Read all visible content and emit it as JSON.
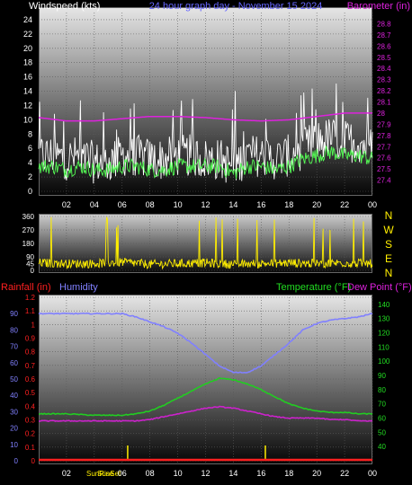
{
  "header": {
    "left_title": "Windspeed (kts)",
    "center_title": "24 hour graph day - November 15 2024",
    "right_title": "Barometer (in)"
  },
  "compass": [
    "N",
    "W",
    "S",
    "E",
    "N"
  ],
  "bottom_titles": {
    "rainfall": "Rainfall (in)",
    "humidity": "Humidity",
    "temperature": "Temperature (°F)",
    "dewpoint": "Dew Point (°F)"
  },
  "sun_labels": [
    "SunRise",
    "SunSet"
  ],
  "colors": {
    "windspeed": "#ffffff",
    "wind_avg": "#55ff55",
    "barometer": "#dd22dd",
    "direction": "#ffee00",
    "humidity": "#8080ff",
    "temperature": "#22cc22",
    "dewpoint": "#cc22cc",
    "rain": "#ff2020",
    "sun_marker": "#ffee00"
  },
  "chart_data": [
    {
      "type": "line",
      "panel": "wind",
      "x_tick_labels": [
        "02",
        "04",
        "06",
        "08",
        "10",
        "12",
        "14",
        "16",
        "18",
        "20",
        "22",
        "00"
      ],
      "xlim_hours": [
        0,
        24
      ],
      "ylabel": "Windspeed (kts)",
      "ylim": [
        0,
        25
      ],
      "y_ticks": [
        0,
        2,
        4,
        6,
        8,
        10,
        12,
        14,
        16,
        18,
        20,
        22,
        24
      ],
      "y2label": "Barometer (in)",
      "y2lim": [
        27.3,
        28.9
      ],
      "y2_ticks": [
        "27.4",
        "27.5",
        "27.6",
        "27.7",
        "27.8",
        "27.9",
        "28",
        "28.1",
        "28.2",
        "28.3",
        "28.4",
        "28.5",
        "28.6",
        "28.7",
        "28.8"
      ],
      "series": [
        {
          "name": "Windspeed",
          "axis": "left",
          "hours": [
            0,
            1,
            2,
            3,
            4,
            5,
            6,
            7,
            8,
            9,
            10,
            11,
            12,
            13,
            14,
            15,
            16,
            17,
            18,
            19,
            20,
            21,
            22,
            23,
            24
          ],
          "values": [
            5,
            5,
            4.5,
            5,
            4,
            4,
            5,
            5,
            4.5,
            4.5,
            5,
            5,
            4.5,
            4.5,
            3.5,
            5,
            5,
            4.5,
            5,
            6,
            7,
            7.5,
            7,
            7,
            6
          ]
        },
        {
          "name": "Wind average",
          "axis": "left",
          "hours": [
            0,
            1,
            2,
            3,
            4,
            5,
            6,
            7,
            8,
            9,
            10,
            11,
            12,
            13,
            14,
            15,
            16,
            17,
            18,
            19,
            20,
            21,
            22,
            23,
            24
          ],
          "values": [
            3.5,
            3.5,
            3,
            3.5,
            3,
            3,
            3.5,
            3.5,
            3,
            3,
            3.5,
            3.5,
            3.5,
            3.5,
            2.5,
            3.5,
            3.5,
            3,
            3.5,
            4.5,
            5,
            5.5,
            5,
            5,
            4.5
          ]
        },
        {
          "name": "Barometer",
          "axis": "right",
          "hours": [
            0,
            2,
            4,
            6,
            8,
            10,
            12,
            14,
            16,
            18,
            20,
            22,
            24
          ],
          "values": [
            27.96,
            27.93,
            27.93,
            27.95,
            27.97,
            27.97,
            27.96,
            27.94,
            27.93,
            27.94,
            27.97,
            28.0,
            28.0
          ]
        }
      ]
    },
    {
      "type": "line",
      "panel": "wind_direction",
      "ylim": [
        0,
        360
      ],
      "y_ticks": [
        0,
        45,
        90,
        180,
        270,
        360
      ],
      "series": [
        {
          "name": "Wind direction",
          "hours": [
            0,
            2,
            4,
            6,
            8,
            10,
            12,
            14,
            16,
            18,
            20,
            22,
            24
          ],
          "values": [
            50,
            45,
            45,
            55,
            40,
            45,
            50,
            40,
            45,
            50,
            45,
            50,
            45
          ]
        }
      ]
    },
    {
      "type": "line",
      "panel": "temperature",
      "x_tick_labels": [
        "02",
        "04",
        "06",
        "08",
        "10",
        "12",
        "14",
        "16",
        "18",
        "20",
        "22",
        "00"
      ],
      "xlim_hours": [
        0,
        24
      ],
      "rain_ylim": [
        0,
        1.2
      ],
      "rain_ticks": [
        "0",
        "0.1",
        "0.2",
        "0.3",
        "0.4",
        "0.5",
        "0.6",
        "0.7",
        "0.8",
        "0.9",
        "1",
        "1.1",
        "1.2"
      ],
      "humidity_ylim": [
        0,
        100
      ],
      "humidity_ticks": [
        0,
        10,
        20,
        30,
        40,
        50,
        60,
        70,
        80,
        90
      ],
      "temp_ylim": [
        30,
        145
      ],
      "temp_ticks": [
        40,
        50,
        60,
        70,
        80,
        90,
        100,
        110,
        120,
        130,
        140
      ],
      "sunrise_hour": 6.4,
      "sunset_hour": 16.3,
      "series": [
        {
          "name": "Humidity",
          "axis": "humidity",
          "hours": [
            0,
            2,
            4,
            6,
            7,
            8,
            9,
            10,
            11,
            12,
            13,
            14,
            15,
            16,
            17,
            18,
            19,
            20,
            21,
            22,
            23,
            24
          ],
          "values": [
            90,
            90,
            90,
            90,
            88,
            85,
            82,
            78,
            72,
            65,
            58,
            54,
            54,
            58,
            65,
            72,
            80,
            84,
            86,
            87,
            88,
            90
          ]
        },
        {
          "name": "Temperature",
          "axis": "temp",
          "hours": [
            0,
            2,
            4,
            6,
            7,
            8,
            9,
            10,
            11,
            12,
            13,
            14,
            15,
            16,
            17,
            18,
            19,
            20,
            21,
            22,
            23,
            24
          ],
          "values": [
            63,
            63,
            62,
            62,
            63,
            65,
            69,
            74,
            79,
            84,
            88,
            87,
            84,
            80,
            75,
            70,
            67,
            65,
            64,
            64,
            63,
            63
          ]
        },
        {
          "name": "Dew Point",
          "axis": "temp",
          "hours": [
            0,
            2,
            4,
            6,
            7,
            8,
            9,
            10,
            11,
            12,
            13,
            14,
            15,
            16,
            17,
            18,
            19,
            20,
            21,
            22,
            23,
            24
          ],
          "values": [
            58,
            58,
            58,
            58,
            58,
            59,
            61,
            63,
            65,
            67,
            68,
            67,
            65,
            63,
            61,
            60,
            60,
            60,
            59,
            59,
            58,
            58
          ]
        },
        {
          "name": "Rainfall",
          "axis": "rain",
          "hours": [
            0,
            24
          ],
          "values": [
            0,
            0
          ]
        }
      ]
    }
  ]
}
